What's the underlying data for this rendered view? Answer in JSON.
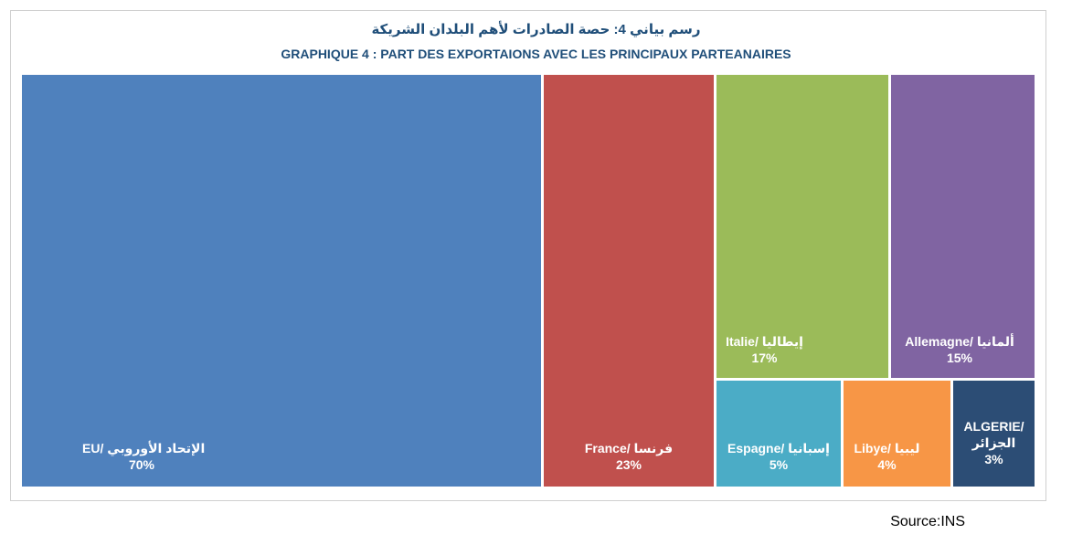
{
  "chart_data": {
    "type": "treemap",
    "title_ar": "رسم بياني 4: حصة الصادرات لأهم البلدان الشريكة",
    "title_fr": "GRAPHIQUE 4 : PART DES EXPORTAIONS AVEC LES PRINCIPAUX PARTEANAIRES",
    "items": [
      {
        "label": "EU/ الإتحاد الأوروبي",
        "value_label": "70%",
        "value": 70,
        "color": "#4f81bd"
      },
      {
        "label": "France/ فرنسا",
        "value_label": "23%",
        "value": 23,
        "color": "#c0504d"
      },
      {
        "label": "Italie/ إيطاليا",
        "value_label": "17%",
        "value": 17,
        "color": "#9bbb59"
      },
      {
        "label": "Allemagne/ ألمانيا",
        "value_label": "15%",
        "value": 15,
        "color": "#8064a2"
      },
      {
        "label": "Espagne/ إسبانيا",
        "value_label": "5%",
        "value": 5,
        "color": "#4bacc6"
      },
      {
        "label": "Libye/ ليبيا",
        "value_label": "4%",
        "value": 4,
        "color": "#f79646"
      },
      {
        "label": "ALGERIE/ الجزائر",
        "value_label": "3%",
        "value": 3,
        "color": "#2c4d75"
      }
    ]
  },
  "source": "Source:INS"
}
